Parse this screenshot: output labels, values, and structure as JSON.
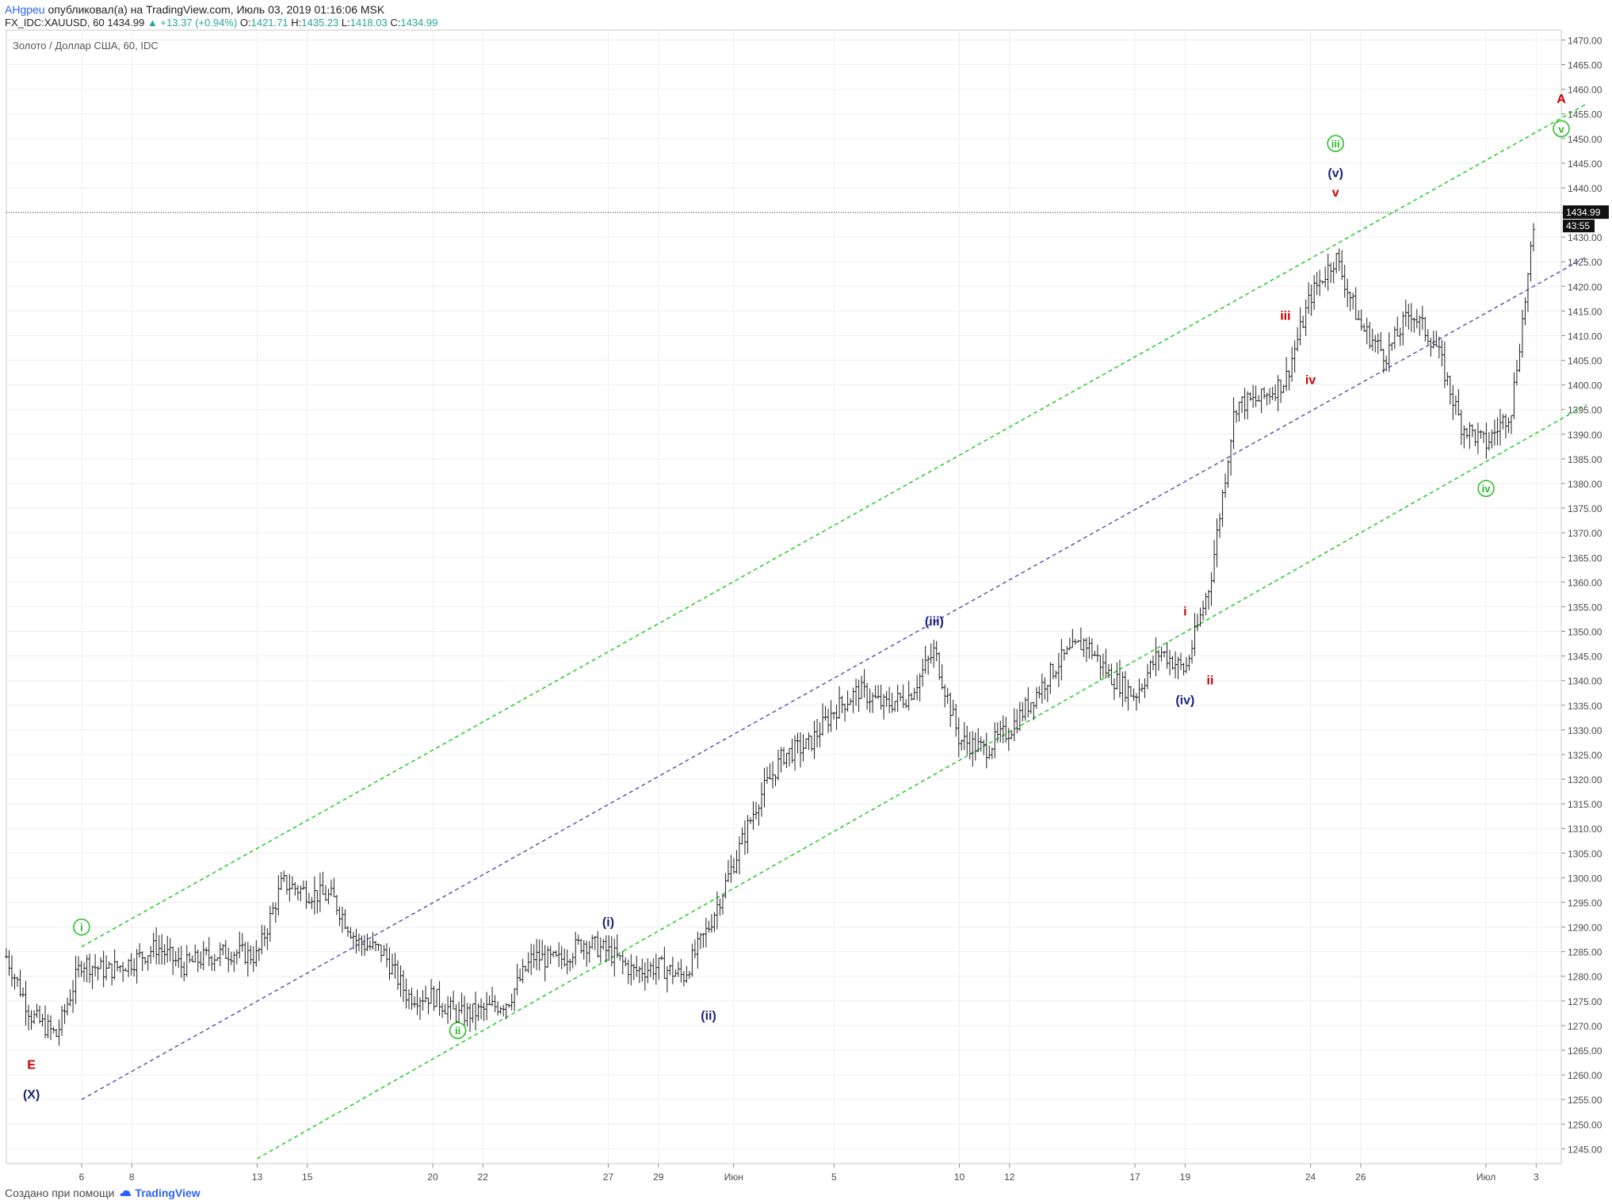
{
  "header": {
    "author": "АНgреu",
    "published_text": "опубликовал(а) на TradingView.com, Июль 03, 2019 01:16:06 MSK",
    "symbol": "FX_IDC:XAUUSD, 60",
    "last": "1434.99",
    "change": "▲ +13.37 (+0.94%)",
    "o_label": "O:",
    "o": "1421.71",
    "h_label": "H:",
    "h": "1435.23",
    "l_label": "L:",
    "l": "1418.03",
    "c_label": "C:",
    "c": "1434.99"
  },
  "footer": {
    "created_text": "Создано при помощи",
    "brand": "TradingView"
  },
  "chart_data": {
    "type": "candlestick",
    "title": "Золото / Доллар США, 60, IDC",
    "ylim": [
      1242,
      1472
    ],
    "grid": true,
    "y_ticks": [
      1245,
      1250,
      1255,
      1260,
      1265,
      1270,
      1275,
      1280,
      1285,
      1290,
      1295,
      1300,
      1305,
      1310,
      1315,
      1320,
      1325,
      1330,
      1335,
      1340,
      1345,
      1350,
      1355,
      1360,
      1365,
      1370,
      1375,
      1380,
      1385,
      1390,
      1395,
      1400,
      1405,
      1410,
      1415,
      1420,
      1425,
      1430,
      1435,
      1440,
      1445,
      1450,
      1455,
      1460,
      1465,
      1470
    ],
    "x_range": [
      "2019-05-03",
      "2019-07-04"
    ],
    "x_ticks": [
      {
        "label": "6",
        "date": "2019-05-06"
      },
      {
        "label": "8",
        "date": "2019-05-08"
      },
      {
        "label": "13",
        "date": "2019-05-13"
      },
      {
        "label": "15",
        "date": "2019-05-15"
      },
      {
        "label": "20",
        "date": "2019-05-20"
      },
      {
        "label": "22",
        "date": "2019-05-22"
      },
      {
        "label": "27",
        "date": "2019-05-27"
      },
      {
        "label": "29",
        "date": "2019-05-29"
      },
      {
        "label": "Июн",
        "date": "2019-06-01"
      },
      {
        "label": "5",
        "date": "2019-06-05"
      },
      {
        "label": "10",
        "date": "2019-06-10"
      },
      {
        "label": "12",
        "date": "2019-06-12"
      },
      {
        "label": "17",
        "date": "2019-06-17"
      },
      {
        "label": "19",
        "date": "2019-06-19"
      },
      {
        "label": "24",
        "date": "2019-06-24"
      },
      {
        "label": "26",
        "date": "2019-06-26"
      },
      {
        "label": "Июл",
        "date": "2019-07-01"
      },
      {
        "label": "3",
        "date": "2019-07-03"
      }
    ],
    "price_path": [
      [
        "2019-05-03",
        1284
      ],
      [
        "2019-05-04",
        1272
      ],
      [
        "2019-05-05",
        1268
      ],
      [
        "2019-05-06",
        1283
      ],
      [
        "2019-05-07",
        1281
      ],
      [
        "2019-05-08",
        1283
      ],
      [
        "2019-05-09",
        1286
      ],
      [
        "2019-05-10",
        1282
      ],
      [
        "2019-05-11",
        1284
      ],
      [
        "2019-05-12",
        1285
      ],
      [
        "2019-05-13",
        1284
      ],
      [
        "2019-05-14",
        1299
      ],
      [
        "2019-05-15",
        1297
      ],
      [
        "2019-05-16",
        1296
      ],
      [
        "2019-05-17",
        1287
      ],
      [
        "2019-05-18",
        1285
      ],
      [
        "2019-05-19",
        1276
      ],
      [
        "2019-05-20",
        1276
      ],
      [
        "2019-05-21",
        1272
      ],
      [
        "2019-05-22",
        1273
      ],
      [
        "2019-05-23",
        1275
      ],
      [
        "2019-05-24",
        1284
      ],
      [
        "2019-05-25",
        1283
      ],
      [
        "2019-05-26",
        1287
      ],
      [
        "2019-05-27",
        1285
      ],
      [
        "2019-05-28",
        1281
      ],
      [
        "2019-05-29",
        1282
      ],
      [
        "2019-05-30",
        1280
      ],
      [
        "2019-05-31",
        1290
      ],
      [
        "2019-06-01",
        1303
      ],
      [
        "2019-06-02",
        1316
      ],
      [
        "2019-06-03",
        1325
      ],
      [
        "2019-06-04",
        1327
      ],
      [
        "2019-06-05",
        1334
      ],
      [
        "2019-06-06",
        1338
      ],
      [
        "2019-06-07",
        1335
      ],
      [
        "2019-06-08",
        1337
      ],
      [
        "2019-06-09",
        1346
      ],
      [
        "2019-06-10",
        1328
      ],
      [
        "2019-06-11",
        1326
      ],
      [
        "2019-06-12",
        1330
      ],
      [
        "2019-06-13",
        1337
      ],
      [
        "2019-06-14",
        1344
      ],
      [
        "2019-06-15",
        1348
      ],
      [
        "2019-06-16",
        1341
      ],
      [
        "2019-06-17",
        1337
      ],
      [
        "2019-06-18",
        1346
      ],
      [
        "2019-06-19",
        1342
      ],
      [
        "2019-06-20",
        1360
      ],
      [
        "2019-06-21",
        1396
      ],
      [
        "2019-06-22",
        1397
      ],
      [
        "2019-06-23",
        1401
      ],
      [
        "2019-06-24",
        1418
      ],
      [
        "2019-06-25",
        1426
      ],
      [
        "2019-06-26",
        1412
      ],
      [
        "2019-06-27",
        1406
      ],
      [
        "2019-06-28",
        1415
      ],
      [
        "2019-06-29",
        1408
      ],
      [
        "2019-06-30",
        1392
      ],
      [
        "2019-07-01",
        1388
      ],
      [
        "2019-07-02",
        1395
      ],
      [
        "2019-07-03",
        1434.99
      ]
    ],
    "last_price": "1434.99",
    "countdown": "43:55",
    "wave_labels": [
      {
        "text": "E",
        "date": "2019-05-04",
        "price": 1262,
        "color": "#cc0000"
      },
      {
        "text": "(X)",
        "date": "2019-05-04",
        "price": 1256,
        "color": "#1a237e"
      },
      {
        "text": "i",
        "date": "2019-05-06",
        "price": 1290,
        "color": "#22bb22",
        "circled": true
      },
      {
        "text": "ii",
        "date": "2019-05-21",
        "price": 1269,
        "color": "#22bb22",
        "circled": true
      },
      {
        "text": "(i)",
        "date": "2019-05-27",
        "price": 1291,
        "color": "#1a237e"
      },
      {
        "text": "(ii)",
        "date": "2019-05-31",
        "price": 1272,
        "color": "#1a237e"
      },
      {
        "text": "(iii)",
        "date": "2019-06-09",
        "price": 1352,
        "color": "#1a237e"
      },
      {
        "text": "(iv)",
        "date": "2019-06-19",
        "price": 1336,
        "color": "#1a237e"
      },
      {
        "text": "i",
        "date": "2019-06-19",
        "price": 1354,
        "color": "#cc0000"
      },
      {
        "text": "ii",
        "date": "2019-06-20",
        "price": 1340,
        "color": "#cc0000"
      },
      {
        "text": "iii",
        "date": "2019-06-23",
        "price": 1414,
        "color": "#cc0000"
      },
      {
        "text": "iv",
        "date": "2019-06-24",
        "price": 1401,
        "color": "#cc0000"
      },
      {
        "text": "(v)",
        "date": "2019-06-25",
        "price": 1443,
        "color": "#1a237e"
      },
      {
        "text": "v",
        "date": "2019-06-25",
        "price": 1439,
        "color": "#cc0000"
      },
      {
        "text": "iii",
        "date": "2019-06-25",
        "price": 1449,
        "color": "#22bb22",
        "circled": true
      },
      {
        "text": "iv",
        "date": "2019-07-01",
        "price": 1379,
        "color": "#22bb22",
        "circled": true
      },
      {
        "text": "v",
        "date": "2019-07-04",
        "price": 1452,
        "color": "#22bb22",
        "circled": true
      },
      {
        "text": "A",
        "date": "2019-07-04",
        "price": 1458,
        "color": "#cc0000"
      }
    ],
    "channel_lines": [
      {
        "color": "#22cc22",
        "from": [
          "2019-05-06",
          1286
        ],
        "to": [
          "2019-07-05",
          1457
        ]
      },
      {
        "color": "#6a4fb3",
        "from": [
          "2019-05-06",
          1255
        ],
        "to": [
          "2019-07-05",
          1426
        ]
      },
      {
        "color": "#22cc22",
        "from": [
          "2019-05-13",
          1243
        ],
        "to": [
          "2019-07-05",
          1396
        ]
      }
    ],
    "colors": {
      "up": "#1f1f1f",
      "down": "#1f1f1f",
      "grid": "#eeeeee",
      "wave_green": "#22bb22",
      "wave_blue": "#1a237e",
      "wave_red": "#cc0000"
    }
  }
}
